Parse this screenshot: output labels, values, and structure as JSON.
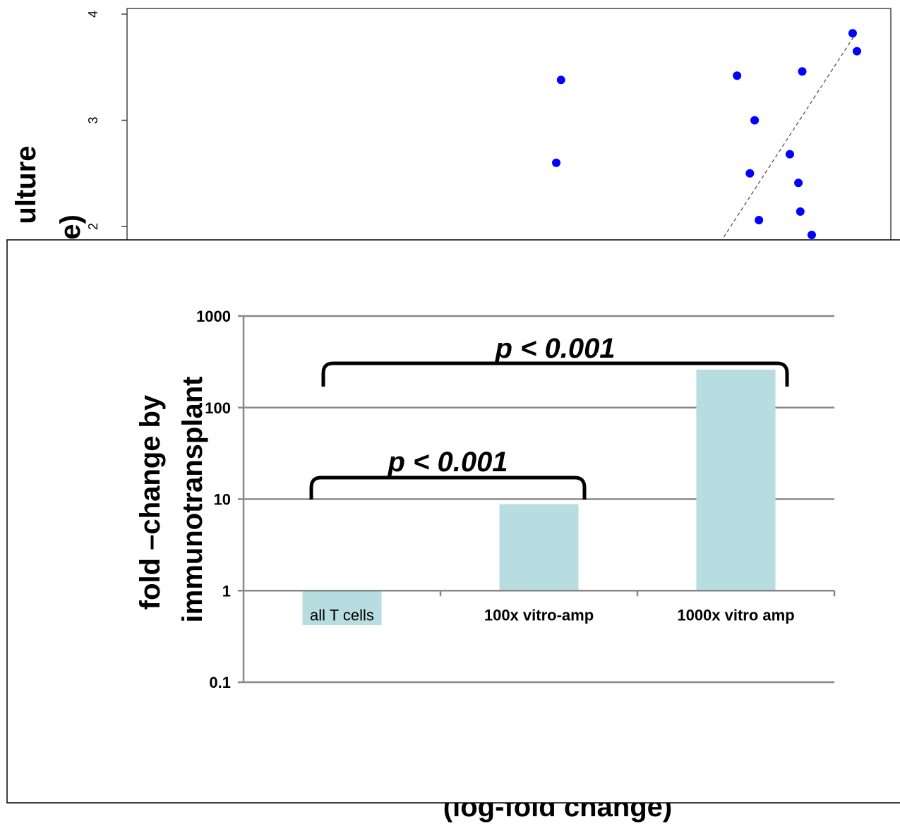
{
  "colors": {
    "scatter_point": "#0000ff",
    "bar_fill": "#b7dde0",
    "grid": "#888888",
    "axis": "#888888",
    "bracket": "#000000"
  },
  "partial_labels": {
    "back_ylabel_line1": "ulture",
    "back_ylabel_line2": "e)",
    "back_xlabel": "(log-fold change)"
  },
  "chart_data": [
    {
      "type": "scatter",
      "y_ticks": [
        2,
        3,
        4
      ],
      "ylim": [
        1.9,
        4.05
      ],
      "xlim": [
        0,
        1
      ],
      "series": [
        {
          "x": [
            0.368,
            0.378,
            0.748,
            0.785,
            0.794,
            0.775,
            0.859,
            0.877,
            0.881,
            0.885,
            0.905,
            0.991,
            1.0
          ],
          "y": [
            2.6,
            3.38,
            3.42,
            3.0,
            2.06,
            2.5,
            2.68,
            2.41,
            2.14,
            3.46,
            1.92,
            3.82,
            3.65
          ]
        }
      ],
      "trendline": {
        "x": [
          0.72,
          0.995
        ],
        "y": [
          1.9,
          3.8
        ],
        "style": "dashed"
      }
    },
    {
      "type": "bar",
      "scale": "log",
      "ylim": [
        0.1,
        1000
      ],
      "y_ticks": [
        "0.1",
        "1",
        "10",
        "100",
        "1000"
      ],
      "ylabel": "fold –change by immunotransplant",
      "categories": [
        "all T cells",
        "100x vitro-amp",
        "1000x vitro amp"
      ],
      "values": [
        0.42,
        8.8,
        260
      ],
      "annotations": [
        {
          "text": "p < 0.001",
          "from": "all T cells",
          "to": "1000x vitro amp"
        },
        {
          "text": "p < 0.001",
          "from": "all T cells",
          "to": "100x vitro-amp"
        }
      ]
    }
  ]
}
